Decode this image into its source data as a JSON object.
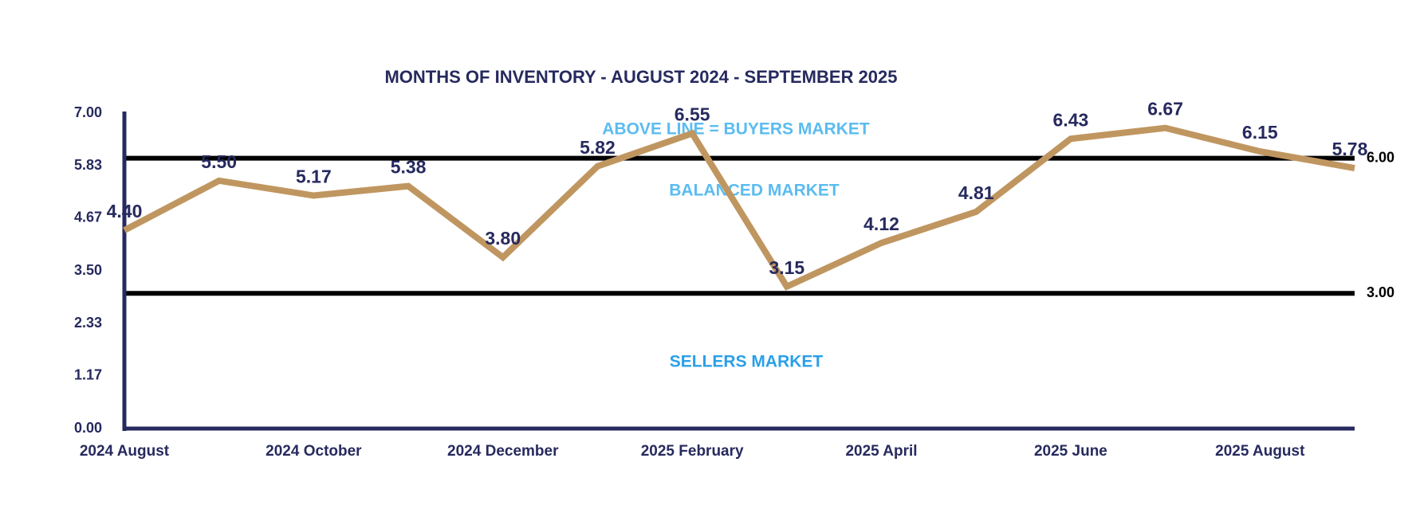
{
  "chart_data": {
    "type": "line",
    "title": "MONTHS OF INVENTORY - AUGUST 2024 - SEPTEMBER 2025",
    "categories": [
      "2024 August",
      null,
      "2024 October",
      null,
      "2024 December",
      null,
      "2025 February",
      null,
      "2025 April",
      null,
      "2025 June",
      null,
      "2025 August",
      null
    ],
    "series": [
      {
        "color": "#c09660",
        "values": [
          4.4,
          5.5,
          5.17,
          5.38,
          3.8,
          5.82,
          6.55,
          3.15,
          4.12,
          4.81,
          6.43,
          6.67,
          6.15,
          5.78
        ],
        "value_labels": [
          "4.40",
          "5.50",
          "5.17",
          "5.38",
          "3.80",
          "5.82",
          "6.55",
          "3.15",
          "4.12",
          "4.81",
          "6.43",
          "6.67",
          "6.15",
          "5.78"
        ]
      }
    ],
    "ylim": [
      0,
      7
    ],
    "yticks": [
      {
        "value": 0,
        "label": "0.00"
      },
      {
        "value": 1.17,
        "label": "1.17"
      },
      {
        "value": 2.33,
        "label": "2.33"
      },
      {
        "value": 3.5,
        "label": "3.50"
      },
      {
        "value": 4.67,
        "label": "4.67"
      },
      {
        "value": 5.83,
        "label": "5.83"
      },
      {
        "value": 7,
        "label": "7.00"
      }
    ],
    "reference_lines": [
      {
        "value": 6,
        "label": "6.00"
      },
      {
        "value": 3,
        "label": "3.00"
      }
    ],
    "annotations": [
      "ABOVE LINE = BUYERS MARKET",
      "BALANCED MARKET",
      "SELLERS MARKET"
    ]
  }
}
